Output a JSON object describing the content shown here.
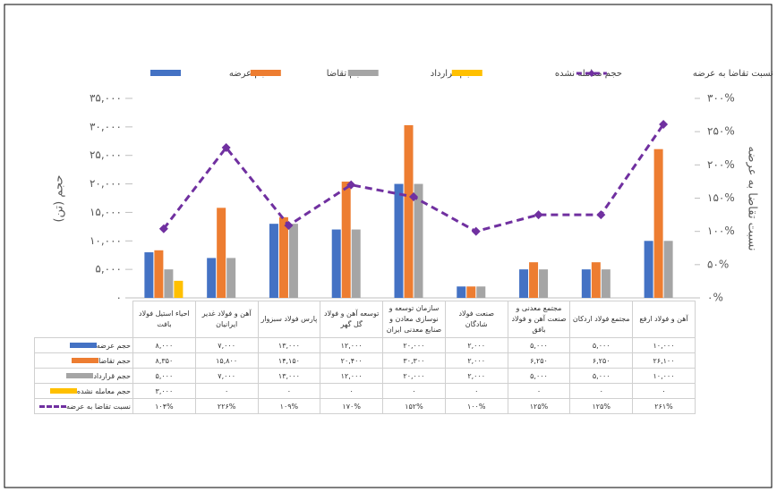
{
  "chart_data": {
    "type": "bar",
    "legend": "top",
    "y_label": "حجم (تن)",
    "y2_label": "نسبت تقاضا به عرضه",
    "categories": [
      "احیاء استیل فولاد بافت",
      "آهن و فولاد غدیر ایرانیان",
      "پارس فولاد سبزوار",
      "توسعه آهن و فولاد گل گهر",
      "سازمان توسعه و نوسازی معادن و صنایع معدنی ایران",
      "صنعت فولاد شادگان",
      "مجتمع معدنی و صنعت آهن و فولاد بافق",
      "مجتمع فولاد اردکان",
      "آهن و فولاد ارفع"
    ],
    "series": [
      {
        "name": "حجم عرضه",
        "color": "#4472c4",
        "values": [
          8000,
          7000,
          13000,
          12000,
          20000,
          2000,
          5000,
          5000,
          10000
        ],
        "value_labels": [
          "۸,۰۰۰",
          "۷,۰۰۰",
          "۱۳,۰۰۰",
          "۱۲,۰۰۰",
          "۲۰,۰۰۰",
          "۲,۰۰۰",
          "۵,۰۰۰",
          "۵,۰۰۰",
          "۱۰,۰۰۰"
        ]
      },
      {
        "name": "حجم تقاضا",
        "color": "#ed7d31",
        "values": [
          8350,
          15800,
          14150,
          20400,
          30300,
          2000,
          6250,
          6250,
          26100
        ],
        "value_labels": [
          "۸,۳۵۰",
          "۱۵,۸۰۰",
          "۱۴,۱۵۰",
          "۲۰,۴۰۰",
          "۳۰,۳۰۰",
          "۲,۰۰۰",
          "۶,۲۵۰",
          "۶,۲۵۰",
          "۲۶,۱۰۰"
        ]
      },
      {
        "name": "حجم قرارداد",
        "color": "#a5a5a5",
        "values": [
          5000,
          7000,
          13000,
          12000,
          20000,
          2000,
          5000,
          5000,
          10000
        ],
        "value_labels": [
          "۵,۰۰۰",
          "۷,۰۰۰",
          "۱۳,۰۰۰",
          "۱۲,۰۰۰",
          "۲۰,۰۰۰",
          "۲,۰۰۰",
          "۵,۰۰۰",
          "۵,۰۰۰",
          "۱۰,۰۰۰"
        ]
      },
      {
        "name": "حجم معامله نشده",
        "color": "#ffc000",
        "values": [
          3000,
          0,
          0,
          0,
          0,
          0,
          0,
          0,
          0
        ],
        "value_labels": [
          "۳,۰۰۰",
          "۰",
          "۰",
          "۰",
          "۰",
          "۰",
          "۰",
          "۰",
          "۰"
        ]
      },
      {
        "name": "نسبت تقاضا به عرضه",
        "color": "#7030a0",
        "type": "line",
        "axis": "y2",
        "values": [
          104,
          226,
          109,
          170,
          152,
          100,
          125,
          125,
          261
        ],
        "value_labels": [
          "۱۰۴%",
          "۲۲۶%",
          "۱۰۹%",
          "۱۷۰%",
          "۱۵۲%",
          "۱۰۰%",
          "۱۲۵%",
          "۱۲۵%",
          "۲۶۱%"
        ]
      }
    ],
    "ylim": [
      0,
      35000
    ],
    "yticks": [
      {
        "value": 0,
        "label": "۰"
      },
      {
        "value": 5000,
        "label": "۵,۰۰۰"
      },
      {
        "value": 10000,
        "label": "۱۰,۰۰۰"
      },
      {
        "value": 15000,
        "label": "۱۵,۰۰۰"
      },
      {
        "value": 20000,
        "label": "۲۰,۰۰۰"
      },
      {
        "value": 25000,
        "label": "۲۵,۰۰۰"
      },
      {
        "value": 30000,
        "label": "۳۰,۰۰۰"
      },
      {
        "value": 35000,
        "label": "۳۵,۰۰۰"
      }
    ],
    "y2lim": [
      0,
      300
    ],
    "y2ticks": [
      {
        "value": 0,
        "label": "۰%"
      },
      {
        "value": 50,
        "label": "۵۰%"
      },
      {
        "value": 100,
        "label": "۱۰۰%"
      },
      {
        "value": 150,
        "label": "۱۵۰%"
      },
      {
        "value": 200,
        "label": "۲۰۰%"
      },
      {
        "value": 250,
        "label": "۲۵۰%"
      },
      {
        "value": 300,
        "label": "۳۰۰%"
      }
    ]
  }
}
